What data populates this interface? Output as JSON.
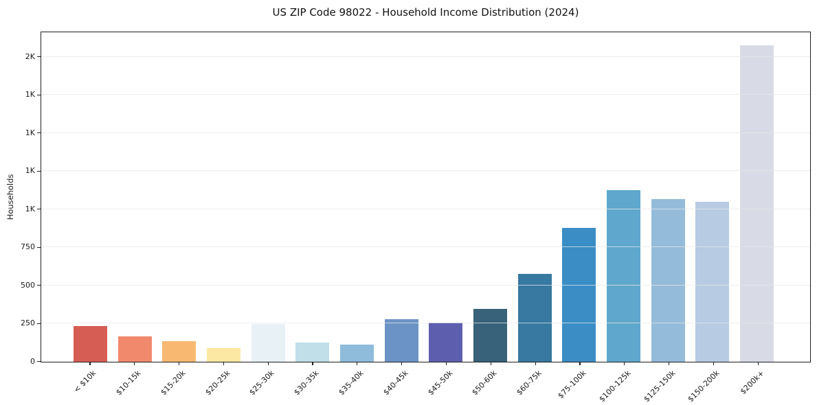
{
  "chart_data": {
    "type": "bar",
    "title": "US ZIP Code 98022 - Household Income Distribution (2024)",
    "xlabel": "",
    "ylabel": "Households",
    "ylim": [
      0,
      2160
    ],
    "grid": "horizontal",
    "legend": "none",
    "categories": [
      "< $10k",
      "$10-15k",
      "$15-20k",
      "$20-25k",
      "$25-30k",
      "$30-35k",
      "$35-40k",
      "$40-45k",
      "$45-50k",
      "$50-60k",
      "$60-75k",
      "$75-100k",
      "$100-125k",
      "$125-150k",
      "$150-200k",
      "$200k+"
    ],
    "values": [
      236,
      166,
      134,
      91,
      248,
      124,
      112,
      281,
      258,
      348,
      576,
      876,
      1124,
      1066,
      1048,
      2076
    ],
    "bar_colors": [
      "#d65d54",
      "#f18a6d",
      "#f8b871",
      "#fce8a3",
      "#e7f1f6",
      "#c1dfe9",
      "#8fbcdb",
      "#6b93c5",
      "#5d5fae",
      "#38617a",
      "#3779a0",
      "#3a8ec5",
      "#5fa7cc",
      "#95bbda",
      "#b7cbe2",
      "#d8dae6"
    ],
    "y_ticks": [
      {
        "value": 0,
        "label": "0"
      },
      {
        "value": 250,
        "label": "250"
      },
      {
        "value": 500,
        "label": "500"
      },
      {
        "value": 750,
        "label": "750"
      },
      {
        "value": 1000,
        "label": "1K"
      },
      {
        "value": 1250,
        "label": "1K"
      },
      {
        "value": 1500,
        "label": "1K"
      },
      {
        "value": 1750,
        "label": "1K"
      },
      {
        "value": 2000,
        "label": "2K"
      }
    ]
  },
  "colors": {
    "axis": "#1c1c1c",
    "gridline": "#e8e8e8",
    "background": "#ffffff",
    "text": "#1a1a1a"
  }
}
